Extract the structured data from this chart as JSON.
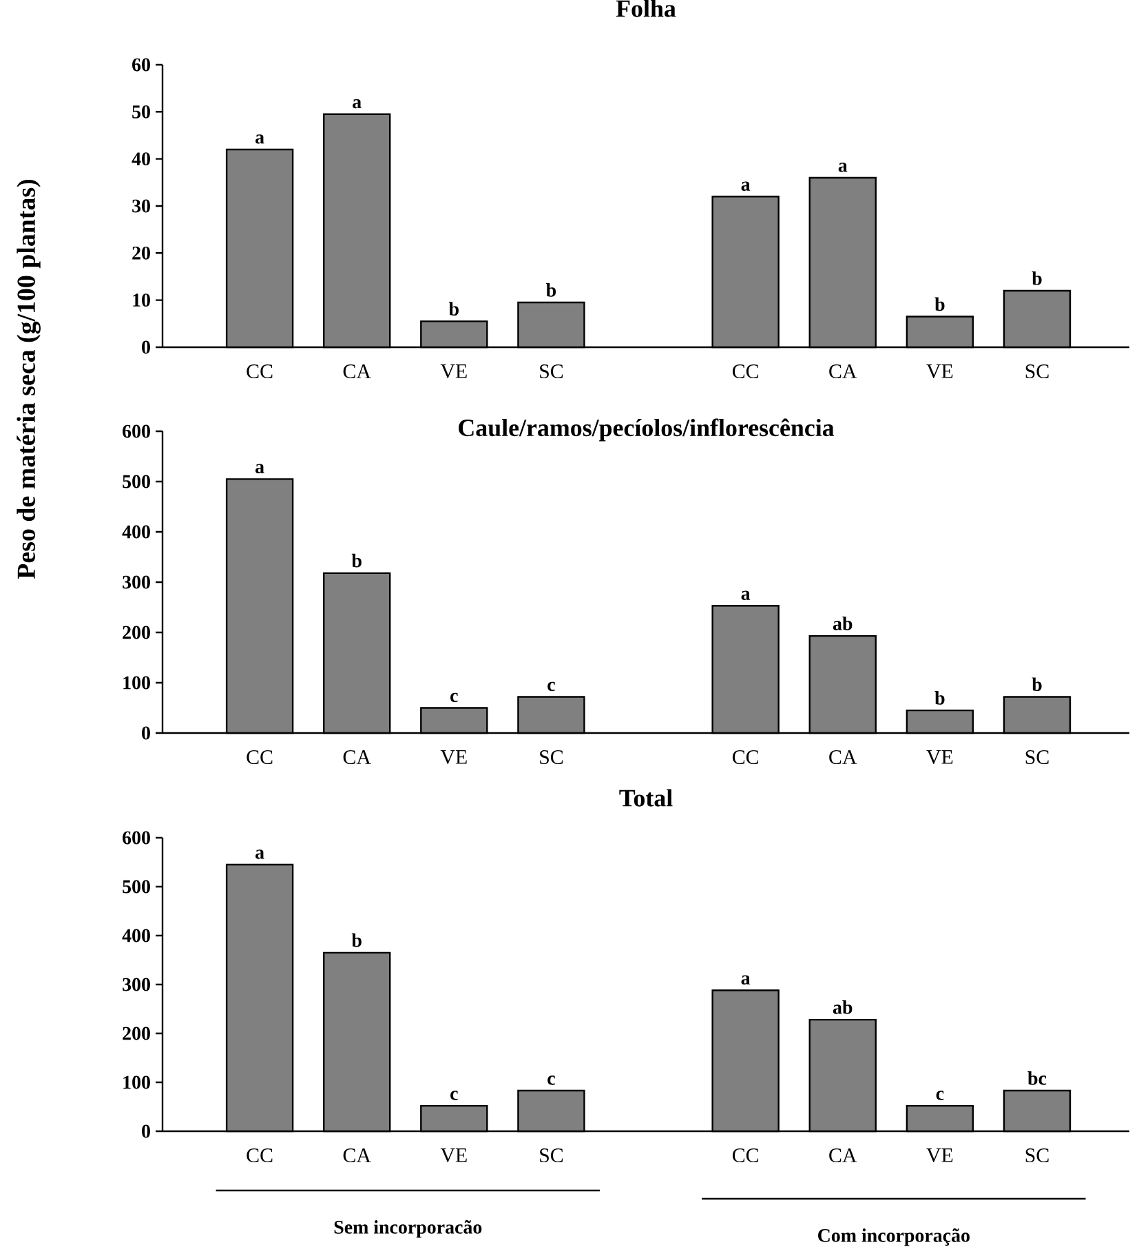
{
  "chart_data": [
    {
      "type": "bar",
      "title": "Folha",
      "categories": [
        "CC",
        "CA",
        "VE",
        "SC",
        null,
        "CC",
        "CA",
        "VE",
        "SC"
      ],
      "values": [
        42,
        49.5,
        5.5,
        9.5,
        null,
        32,
        36,
        6.5,
        12
      ],
      "color": "#808080",
      "value_labels": [
        "a",
        "a",
        "b",
        "b",
        null,
        "a",
        "a",
        "b",
        "b"
      ],
      "ylim": [
        0,
        60
      ],
      "yticks": [
        0,
        10,
        20,
        30,
        40,
        50,
        60
      ]
    },
    {
      "type": "bar",
      "title": "Caule/ramos/pecíolos/inflorescência",
      "ylabel": "Peso de matéria seca (g/100 plantas)",
      "categories": [
        "CC",
        "CA",
        "VE",
        "SC",
        null,
        "CC",
        "CA",
        "VE",
        "SC"
      ],
      "values": [
        505,
        318,
        50,
        72,
        null,
        253,
        193,
        45,
        72
      ],
      "color": "#808080",
      "value_labels": [
        "a",
        "b",
        "c",
        "c",
        null,
        "a",
        "ab",
        "b",
        "b"
      ],
      "ylim": [
        0,
        600
      ],
      "yticks": [
        0,
        100,
        200,
        300,
        400,
        500,
        600
      ]
    },
    {
      "type": "bar",
      "title": "Total",
      "categories": [
        "CC",
        "CA",
        "VE",
        "SC",
        null,
        "CC",
        "CA",
        "VE",
        "SC"
      ],
      "values": [
        545,
        365,
        52,
        83,
        null,
        288,
        228,
        52,
        83
      ],
      "color": "#808080",
      "value_labels": [
        "a",
        "b",
        "c",
        "c",
        null,
        "a",
        "ab",
        "c",
        "bc"
      ],
      "ylim": [
        0,
        600
      ],
      "yticks": [
        0,
        100,
        200,
        300,
        400,
        500,
        600
      ],
      "annotations": [
        "Sem incorporacão",
        "Com incorporação"
      ]
    }
  ]
}
